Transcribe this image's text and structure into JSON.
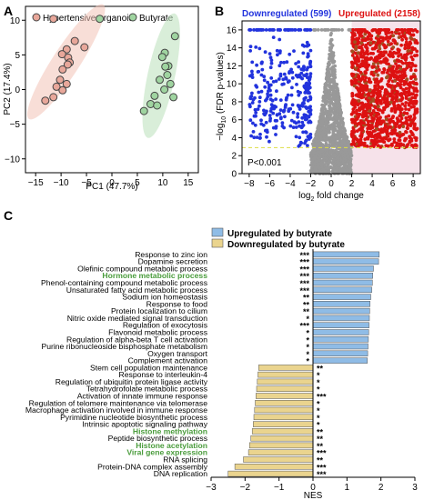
{
  "chart_data": [
    {
      "panel": "A",
      "type": "scatter",
      "xlabel": "PC1 (47.7%)",
      "ylabel": "PC2 (17.4%)",
      "xlim": [
        -17,
        17
      ],
      "ylim": [
        -12,
        12
      ],
      "xticks": [
        -15,
        -10,
        -5,
        0,
        5,
        10,
        15
      ],
      "yticks": [
        -10,
        -5,
        0,
        5,
        10
      ],
      "legend_position": "top",
      "series": [
        {
          "name": "Hypertensive organoid",
          "color": "#e8a79a",
          "points": [
            [
              -11.5,
              10.2
            ],
            [
              -7.3,
              7.0
            ],
            [
              -5.4,
              6.1
            ],
            [
              -8.9,
              5.8
            ],
            [
              -9.8,
              5.1
            ],
            [
              -8.6,
              4.6
            ],
            [
              -8.3,
              3.9
            ],
            [
              -8.7,
              3.6
            ],
            [
              -9.7,
              2.9
            ],
            [
              -10.2,
              1.4
            ],
            [
              -10.9,
              0.4
            ],
            [
              -8.9,
              0.8
            ],
            [
              -9.7,
              -0.1
            ],
            [
              -11.5,
              -1.1
            ],
            [
              -13.1,
              -1.6
            ]
          ]
        },
        {
          "name": "Butyrate",
          "color": "#9fd4a0",
          "points": [
            [
              -2.4,
              10.2
            ],
            [
              12.4,
              7.7
            ],
            [
              10.4,
              5.3
            ],
            [
              9.9,
              4.7
            ],
            [
              11.1,
              3.4
            ],
            [
              10.5,
              3.3
            ],
            [
              10.9,
              2.1
            ],
            [
              9.4,
              1.4
            ],
            [
              11.5,
              0.8
            ],
            [
              10.3,
              0.0
            ],
            [
              8.4,
              -0.9
            ],
            [
              12.1,
              -1.1
            ],
            [
              7.6,
              -2.1
            ],
            [
              8.9,
              -2.3
            ],
            [
              6.3,
              -3.1
            ]
          ]
        }
      ]
    },
    {
      "panel": "B",
      "type": "scatter",
      "xlabel": "log₂ fold change",
      "ylabel": "-log₁₀ (FDR p-values)",
      "xlim": [
        -8.7,
        8.7
      ],
      "ylim": [
        0,
        17
      ],
      "xticks": [
        -8,
        -6,
        -4,
        -2,
        0,
        2,
        4,
        6,
        8
      ],
      "yticks": [
        0,
        2,
        4,
        6,
        8,
        10,
        12,
        14,
        16
      ],
      "thresholds": {
        "fold_change": [
          -2,
          2
        ],
        "p": 2.9
      },
      "annotation": "P<0.001",
      "categories": [
        {
          "name": "Downregulated",
          "count": 599,
          "label": "Downregulated (599)",
          "color": "#2233dd"
        },
        {
          "name": "Upregulated",
          "count": 2158,
          "label": "Upregulated (2158)",
          "color": "#dd1111"
        }
      ]
    },
    {
      "panel": "C",
      "type": "bar",
      "orientation": "horizontal",
      "xlabel": "NES",
      "xlim": [
        -3,
        3
      ],
      "xticks": [
        -3,
        -2,
        -1,
        0,
        1,
        2,
        3
      ],
      "series": [
        {
          "name": "Upregulated by butyrate",
          "color": "#8fbce6"
        },
        {
          "name": "Downregulated by butyrate",
          "color": "#ead48e"
        }
      ],
      "bars": [
        {
          "label": "Response to zinc ion",
          "nes": 1.95,
          "sig": "***",
          "highlight": false
        },
        {
          "label": "Dopamine secretion",
          "nes": 1.93,
          "sig": "***",
          "highlight": false
        },
        {
          "label": "Olefinic compound metabolic process",
          "nes": 1.78,
          "sig": "***",
          "highlight": false
        },
        {
          "label": "Hormone metabolic process",
          "nes": 1.76,
          "sig": "***",
          "highlight": true
        },
        {
          "label": "Phenol-containing compound metabolic process",
          "nes": 1.75,
          "sig": "***",
          "highlight": false
        },
        {
          "label": "Unsaturated fatty acid metabolic process",
          "nes": 1.73,
          "sig": "***",
          "highlight": false
        },
        {
          "label": "Sodium ion homeostasis",
          "nes": 1.7,
          "sig": "**",
          "highlight": false
        },
        {
          "label": "Response to food",
          "nes": 1.68,
          "sig": "**",
          "highlight": false
        },
        {
          "label": "Protein localization to cilium",
          "nes": 1.67,
          "sig": "**",
          "highlight": false
        },
        {
          "label": "Nitric oxide mediated signal transduction",
          "nes": 1.66,
          "sig": "*",
          "highlight": false
        },
        {
          "label": "Regulation of exocytosis",
          "nes": 1.65,
          "sig": "***",
          "highlight": false
        },
        {
          "label": "Flavonoid metabolic process",
          "nes": 1.64,
          "sig": "*",
          "highlight": false
        },
        {
          "label": "Regulation of alpha-beta T cell activation",
          "nes": 1.63,
          "sig": "*",
          "highlight": false
        },
        {
          "label": "Purine ribonucleoside bisphosphate metabolism",
          "nes": 1.62,
          "sig": "*",
          "highlight": false
        },
        {
          "label": "Oxygen transport",
          "nes": 1.61,
          "sig": "*",
          "highlight": false
        },
        {
          "label": "Complement activation",
          "nes": 1.6,
          "sig": "*",
          "highlight": false
        },
        {
          "label": "Stem cell population maintenance",
          "nes": -1.6,
          "sig": "**",
          "highlight": false
        },
        {
          "label": "Response to interleukin-4",
          "nes": -1.62,
          "sig": "*",
          "highlight": false
        },
        {
          "label": "Regulation of ubiquitin protein ligase activity",
          "nes": -1.64,
          "sig": "*",
          "highlight": false
        },
        {
          "label": "Tetrahydrofolate metabolic process",
          "nes": -1.66,
          "sig": "*",
          "highlight": false
        },
        {
          "label": "Activation of innate immune response",
          "nes": -1.68,
          "sig": "***",
          "highlight": false
        },
        {
          "label": "Regulation of telomere maintenance via telomerase",
          "nes": -1.7,
          "sig": "*",
          "highlight": false
        },
        {
          "label": "Macrophage activation involved in immune response",
          "nes": -1.72,
          "sig": "*",
          "highlight": false
        },
        {
          "label": "Pyrimidine nucleotide biosynthetic process",
          "nes": -1.74,
          "sig": "*",
          "highlight": false
        },
        {
          "label": "Intrinsic apoptotic signaling pathway",
          "nes": -1.76,
          "sig": "*",
          "highlight": false
        },
        {
          "label": "Histone methylation",
          "nes": -1.79,
          "sig": "**",
          "highlight": true
        },
        {
          "label": "Peptide biosynthetic process",
          "nes": -1.83,
          "sig": "**",
          "highlight": false
        },
        {
          "label": "Histone acetylation",
          "nes": -1.87,
          "sig": "**",
          "highlight": true
        },
        {
          "label": "Viral gene expression",
          "nes": -1.9,
          "sig": "***",
          "highlight": true
        },
        {
          "label": "RNA splicing",
          "nes": -2.05,
          "sig": "**",
          "highlight": false
        },
        {
          "label": "Protein-DNA complex assembly",
          "nes": -2.3,
          "sig": "***",
          "highlight": false
        },
        {
          "label": "DNA replication",
          "nes": -2.5,
          "sig": "***",
          "highlight": false
        }
      ]
    }
  ],
  "panel_letters": [
    "A",
    "B",
    "C"
  ],
  "colors": {
    "highlight_text": "#4a9c3c",
    "threshold_line": "#dddd44",
    "nonsig": "#999999"
  }
}
